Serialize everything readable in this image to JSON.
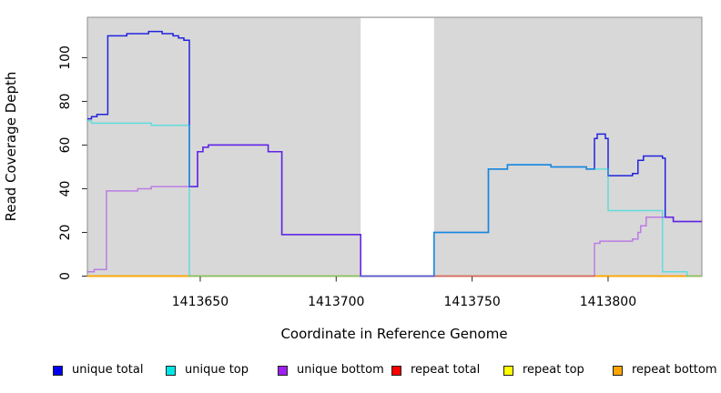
{
  "chart_data": {
    "type": "line",
    "subtype": "step-coverage",
    "xlabel": "Coordinate in Reference Genome",
    "ylabel": "Read Coverage Depth",
    "xlim": [
      1413608.5,
      1413834.5
    ],
    "ylim": [
      0,
      118.5
    ],
    "xticks": [
      1413650,
      1413700,
      1413750,
      1413800
    ],
    "yticks": [
      0,
      20,
      40,
      60,
      80,
      100
    ],
    "panel_bg": "#d8d8d8",
    "panel_border": "#8c8c8c",
    "tick_color": "#262626",
    "gap_regions": [
      [
        1413709,
        1413736
      ]
    ],
    "series": [
      {
        "name": "repeat total",
        "color": "#ff0000",
        "opacity": 1,
        "points": [
          [
            1413608.5,
            0
          ],
          [
            1413834.5,
            0
          ]
        ]
      },
      {
        "name": "repeat top",
        "color": "#ffff00",
        "opacity": 1,
        "points": [
          [
            1413608.5,
            0
          ],
          [
            1413834.5,
            0
          ]
        ]
      },
      {
        "name": "repeat bottom",
        "color": "#ffa500",
        "opacity": 1,
        "points": [
          [
            1413608.5,
            0
          ],
          [
            1413834.5,
            0
          ]
        ]
      },
      {
        "name": "unique total",
        "color": "#2222dd",
        "opacity": 1,
        "points": [
          [
            1413608.5,
            72
          ],
          [
            1413610,
            73
          ],
          [
            1413612,
            74
          ],
          [
            1413616,
            110
          ],
          [
            1413623,
            111
          ],
          [
            1413631,
            112
          ],
          [
            1413636,
            111
          ],
          [
            1413640,
            110
          ],
          [
            1413642,
            109
          ],
          [
            1413644,
            108
          ],
          [
            1413646,
            41
          ],
          [
            1413649,
            57
          ],
          [
            1413651,
            59
          ],
          [
            1413653,
            60
          ],
          [
            1413675,
            57
          ],
          [
            1413680,
            19
          ],
          [
            1413709,
            0
          ],
          [
            1413736,
            20
          ],
          [
            1413756,
            49
          ],
          [
            1413763,
            51
          ],
          [
            1413779,
            50
          ],
          [
            1413792,
            49
          ],
          [
            1413795,
            63
          ],
          [
            1413796,
            65
          ],
          [
            1413799,
            63
          ],
          [
            1413800,
            46
          ],
          [
            1413809,
            47
          ],
          [
            1413811,
            53
          ],
          [
            1413813,
            55
          ],
          [
            1413820,
            54
          ],
          [
            1413821,
            27
          ],
          [
            1413824,
            25
          ],
          [
            1413834.5,
            25
          ]
        ]
      },
      {
        "name": "unique top",
        "color": "#00e0e0",
        "opacity": 0.55,
        "points": [
          [
            1413608.5,
            71
          ],
          [
            1413610,
            70
          ],
          [
            1413632,
            69
          ],
          [
            1413646,
            0
          ],
          [
            1413736,
            20
          ],
          [
            1413756,
            49
          ],
          [
            1413763,
            51
          ],
          [
            1413779,
            50
          ],
          [
            1413792,
            49
          ],
          [
            1413800,
            30
          ],
          [
            1413820,
            2
          ],
          [
            1413829,
            0
          ],
          [
            1413834.5,
            0
          ]
        ]
      },
      {
        "name": "unique bottom",
        "color": "#a020f0",
        "opacity": 0.5,
        "points": [
          [
            1413608.5,
            2
          ],
          [
            1413611,
            3
          ],
          [
            1413615.5,
            39
          ],
          [
            1413627,
            40
          ],
          [
            1413632,
            41
          ],
          [
            1413646,
            41
          ],
          [
            1413649,
            57
          ],
          [
            1413651,
            59
          ],
          [
            1413653,
            60
          ],
          [
            1413675,
            57
          ],
          [
            1413680,
            19
          ],
          [
            1413709,
            0
          ],
          [
            1413795,
            15
          ],
          [
            1413797,
            16
          ],
          [
            1413809,
            17
          ],
          [
            1413811,
            20
          ],
          [
            1413812,
            23
          ],
          [
            1413814,
            27
          ],
          [
            1413824,
            25
          ],
          [
            1413834.5,
            25
          ]
        ]
      }
    ],
    "legend": [
      {
        "label": "unique total",
        "color": "#0000ee"
      },
      {
        "label": "unique top",
        "color": "#00e6e6"
      },
      {
        "label": "unique bottom",
        "color": "#a020f0"
      },
      {
        "label": "repeat total",
        "color": "#ff0000"
      },
      {
        "label": "repeat top",
        "color": "#ffff00"
      },
      {
        "label": "repeat bottom",
        "color": "#ffa500"
      }
    ],
    "legend_position": "bottom"
  }
}
